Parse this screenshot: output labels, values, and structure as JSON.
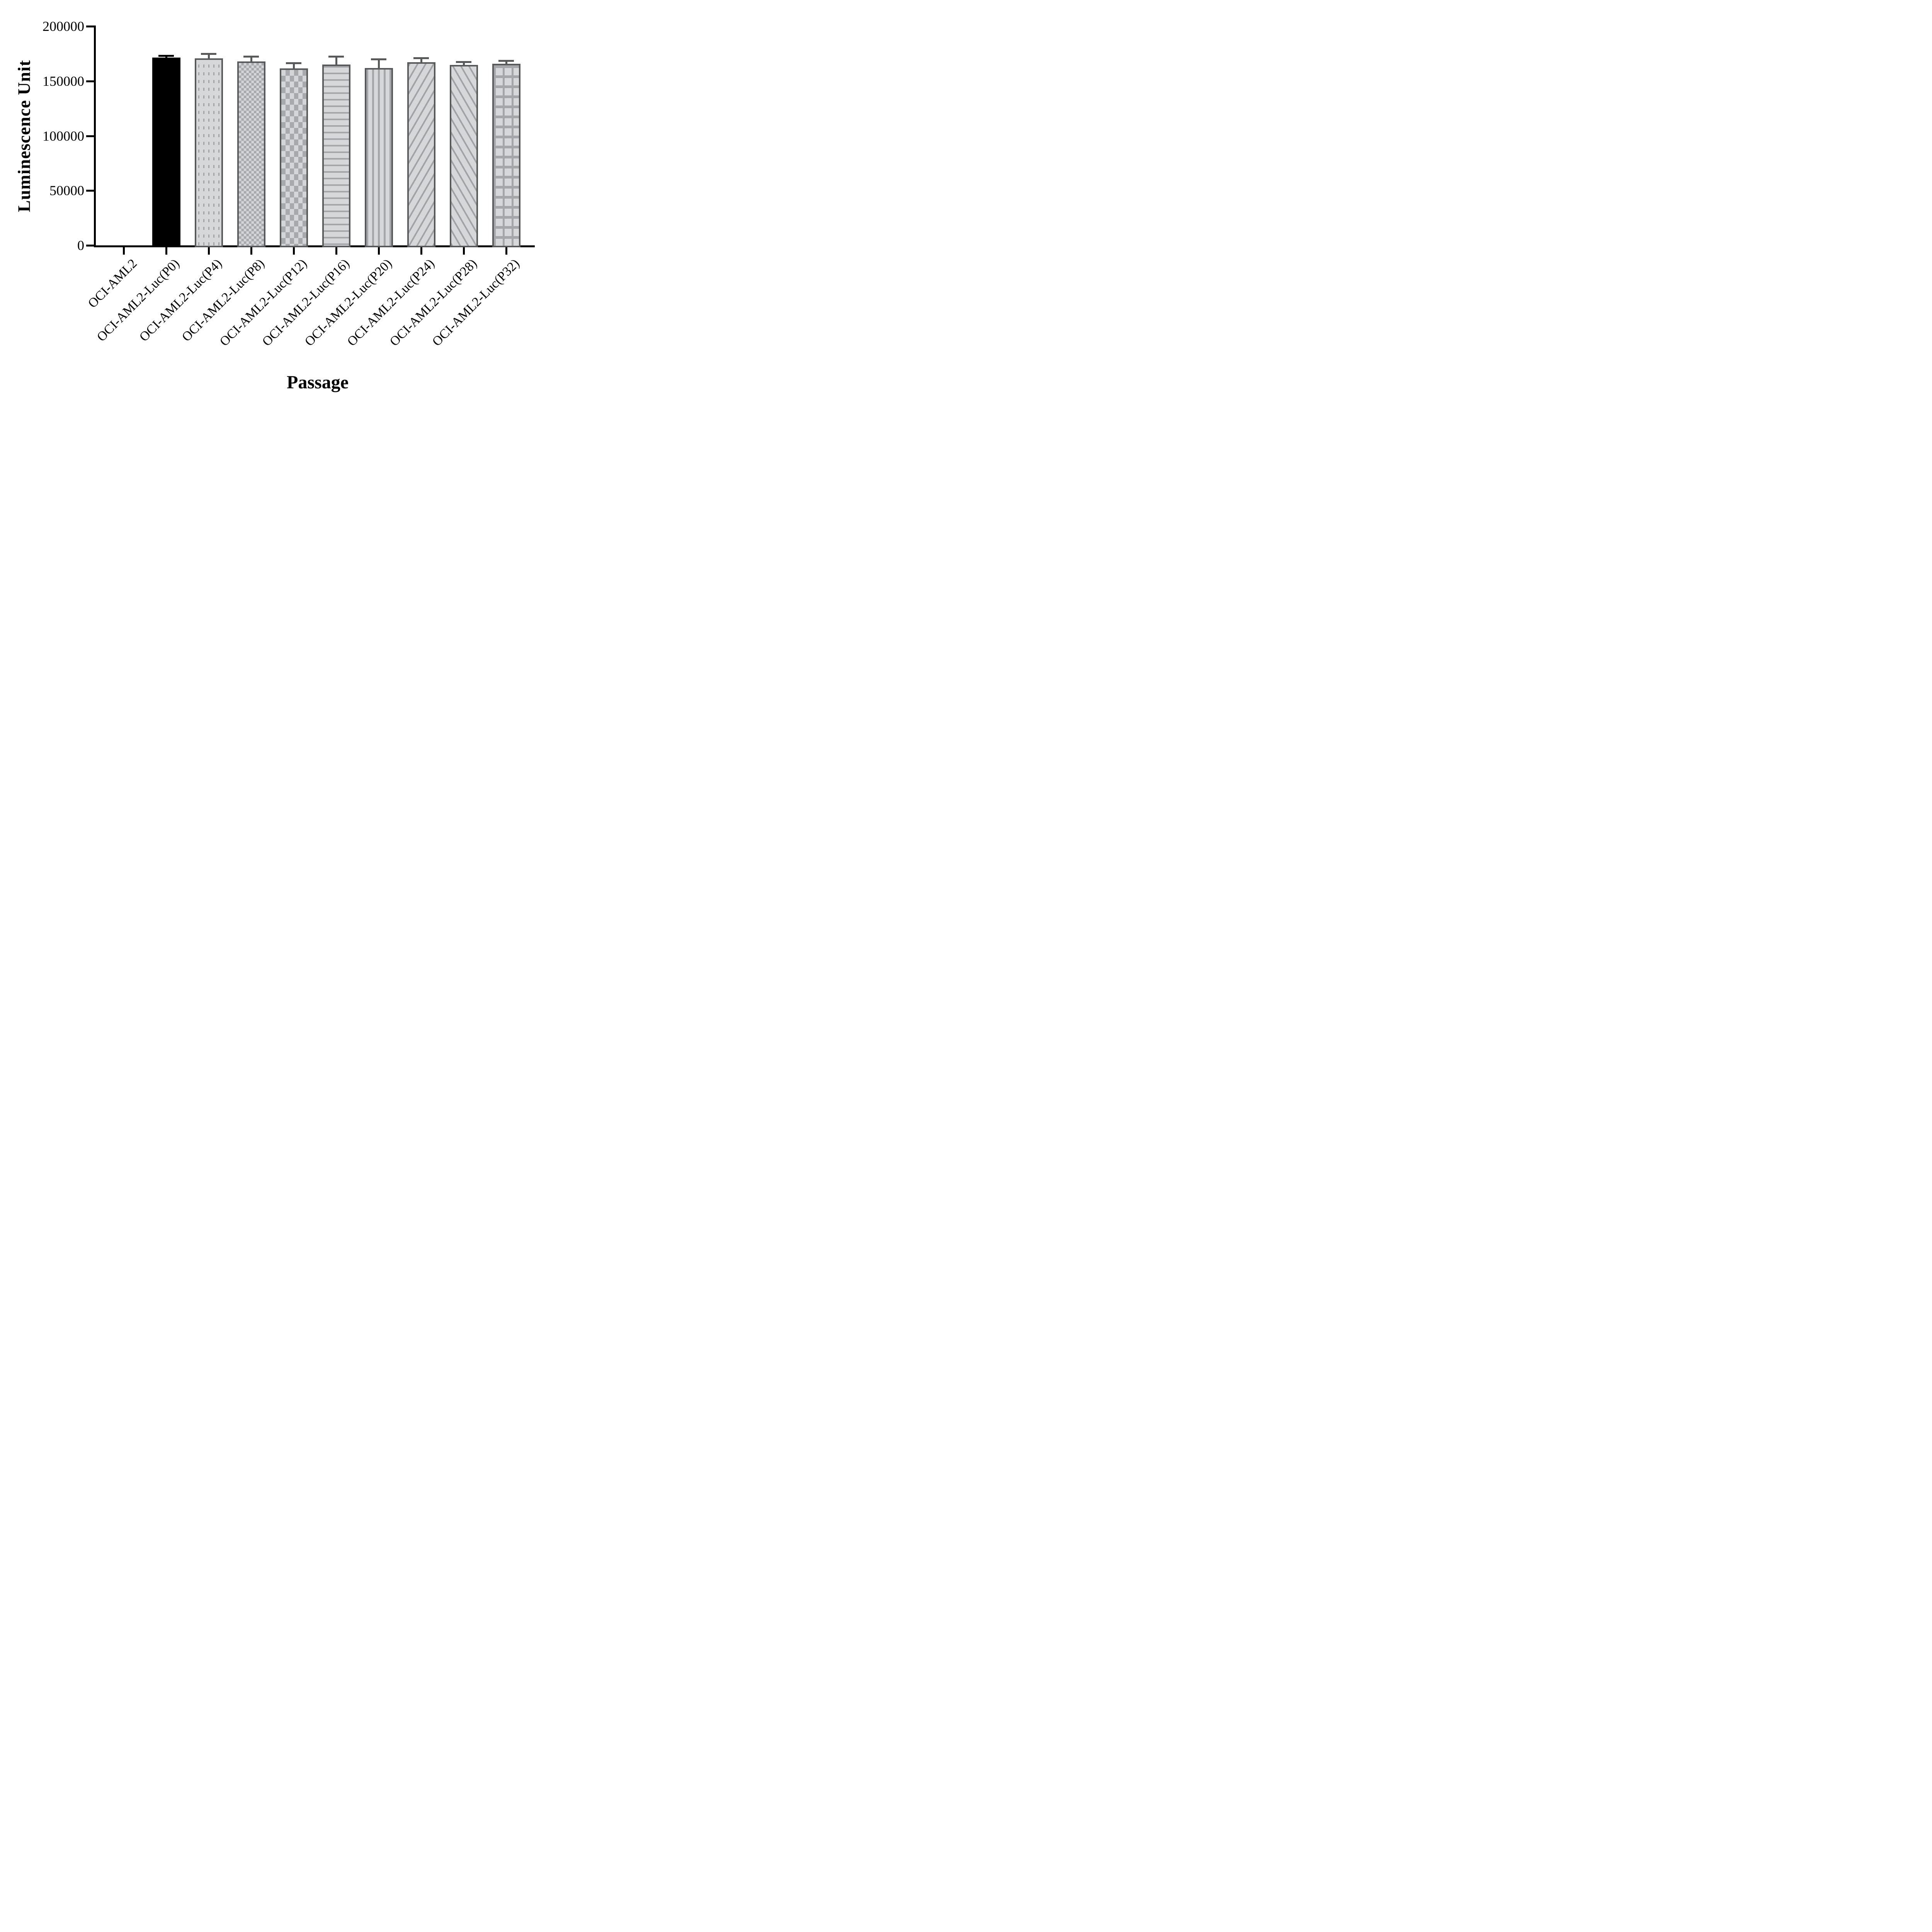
{
  "chart_data": {
    "type": "bar",
    "title": "",
    "xlabel": "Passage",
    "ylabel": "Luminescence Unit",
    "categories": [
      "OCI-AML2",
      "OCI-AML2-Luc(P0)",
      "OCI-AML2-Luc(P4)",
      "OCI-AML2-Luc(P8)",
      "OCI-AML2-Luc(P12)",
      "OCI-AML2-Luc(P16)",
      "OCI-AML2-Luc(P20)",
      "OCI-AML2-Luc(P24)",
      "OCI-AML2-Luc(P28)",
      "OCI-AML2-Luc(P32)"
    ],
    "values": [
      0,
      171300,
      170800,
      167900,
      161500,
      165100,
      162000,
      167300,
      164900,
      165700
    ],
    "error_sd": [
      0,
      900,
      3000,
      3600,
      4000,
      6400,
      6800,
      2600,
      1700,
      1700
    ],
    "error_type": "SD, upper only",
    "bar_patterns": [
      "none",
      "solid-black",
      "dots",
      "checker-fine",
      "checker-coarse",
      "hlines",
      "vlines",
      "diag-up",
      "diag-down",
      "grid"
    ],
    "ylim": [
      0,
      200000
    ],
    "yticks": [
      0,
      50000,
      100000,
      150000,
      200000
    ],
    "ytick_labels": [
      "0",
      "50000",
      "100000",
      "150000",
      "200000"
    ],
    "grid": false,
    "legend_position": "none",
    "colors": {
      "axis": "#000000",
      "bar_border": "#58595b",
      "black_bar": "#000000",
      "bar_fill_light": "#d6d7d8",
      "pattern_gray": "#a0a2a5",
      "error_bar_gray": "#58595b",
      "background": "#ffffff"
    }
  }
}
